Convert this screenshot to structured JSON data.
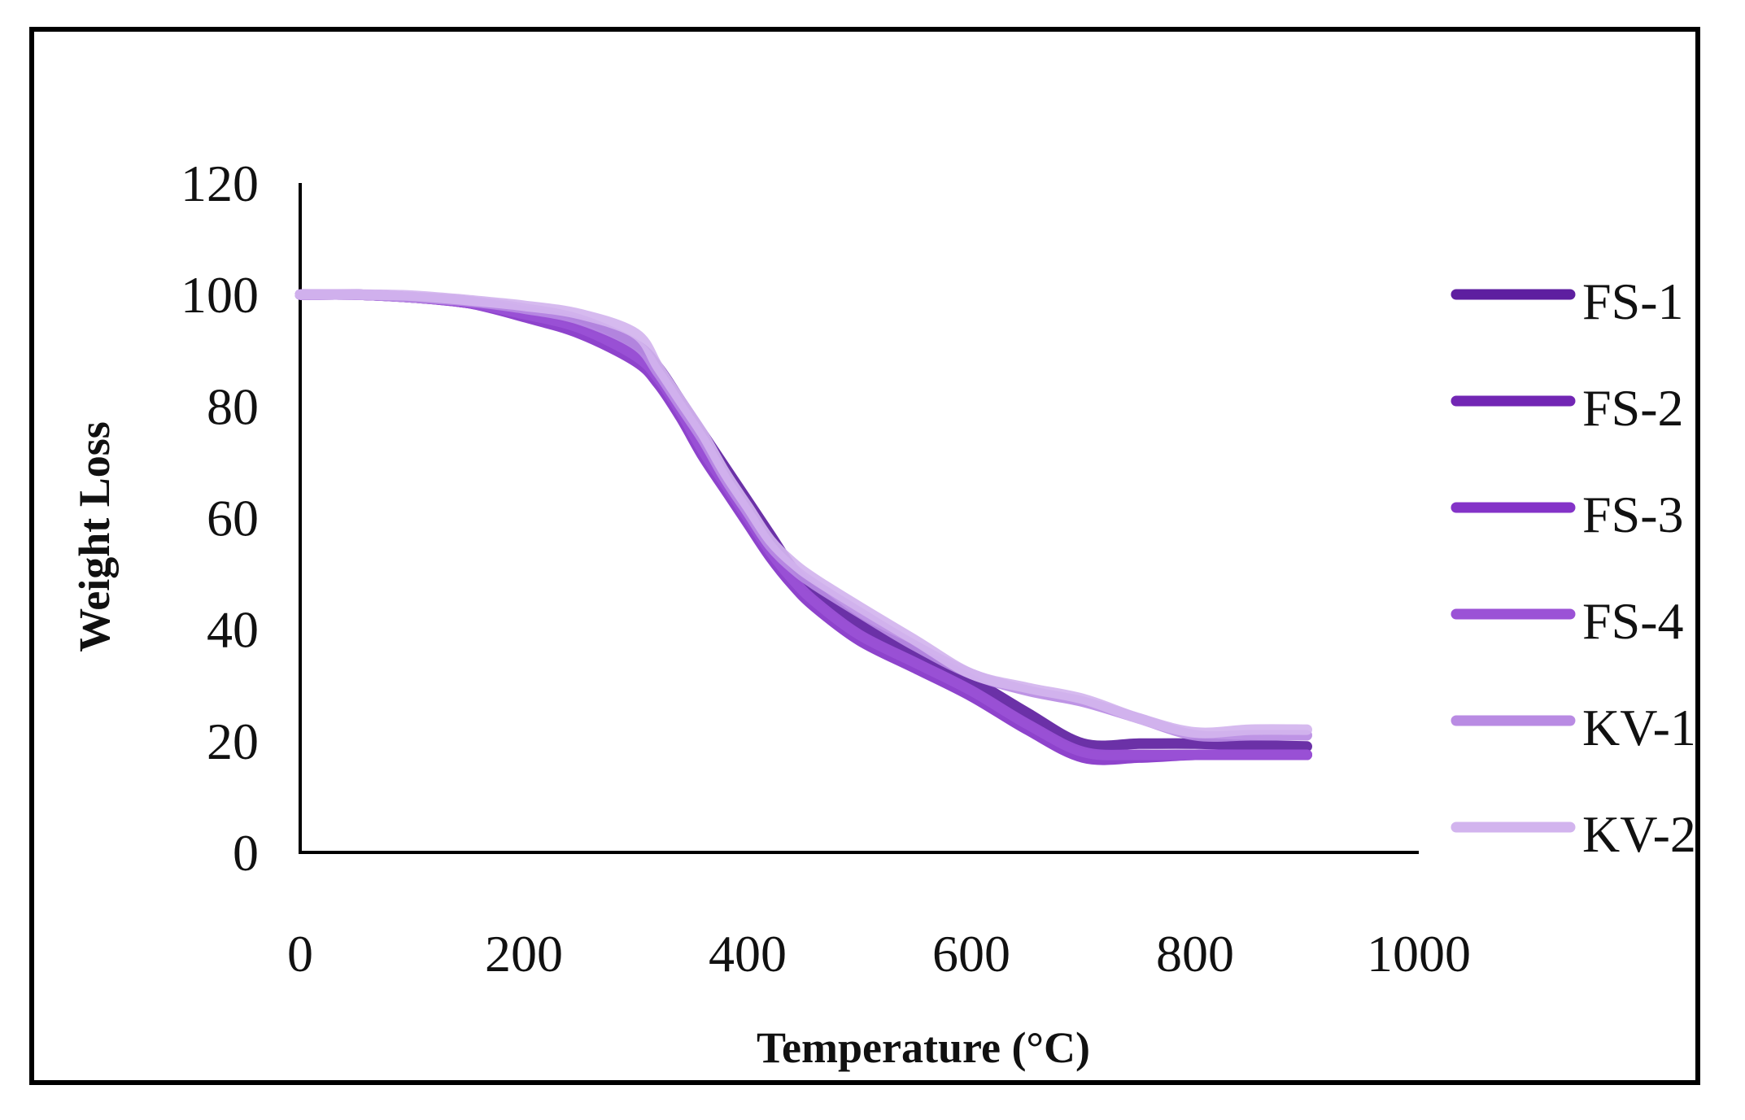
{
  "chart_data": {
    "type": "line",
    "title": "",
    "xlabel": "Temperature (°C)",
    "ylabel": "Weight Loss",
    "xlim": [
      0,
      1000
    ],
    "ylim": [
      0,
      120
    ],
    "x_ticks": [
      "0",
      "200",
      "400",
      "600",
      "800",
      "1000"
    ],
    "y_ticks": [
      "0",
      "20",
      "40",
      "60",
      "80",
      "100",
      "120"
    ],
    "x_tick_values": [
      0,
      200,
      400,
      600,
      800,
      1000
    ],
    "y_tick_values": [
      0,
      20,
      40,
      60,
      80,
      100,
      120
    ],
    "grid": false,
    "legend_position": "right",
    "series": [
      {
        "name": "FS-1",
        "color": "#5e1fa0",
        "x": [
          0,
          50,
          100,
          150,
          200,
          250,
          300,
          320,
          340,
          360,
          380,
          400,
          420,
          440,
          460,
          500,
          550,
          600,
          650,
          700,
          750,
          800,
          850,
          900
        ],
        "y": [
          100,
          100,
          99.5,
          98.8,
          97,
          95,
          91,
          87,
          81,
          75,
          69,
          63,
          57,
          51,
          47,
          41,
          36,
          31,
          25,
          19.5,
          19.5,
          19.5,
          19.2,
          19
        ]
      },
      {
        "name": "FS-2",
        "color": "#7226b4",
        "x": [
          0,
          50,
          100,
          150,
          200,
          250,
          300,
          320,
          340,
          360,
          380,
          400,
          420,
          440,
          460,
          500,
          550,
          600,
          650,
          700,
          750,
          800,
          850,
          900
        ],
        "y": [
          100,
          100,
          99.5,
          98.5,
          96.5,
          94,
          89,
          85,
          79,
          72,
          66,
          60,
          54,
          49,
          45,
          39,
          34,
          29,
          23,
          18,
          17.5,
          17.5,
          17.5,
          17.5
        ]
      },
      {
        "name": "FS-3",
        "color": "#8433c8",
        "x": [
          0,
          50,
          100,
          150,
          200,
          250,
          300,
          320,
          340,
          360,
          380,
          400,
          420,
          440,
          460,
          500,
          550,
          600,
          650,
          700,
          750,
          800,
          850,
          900
        ],
        "y": [
          100,
          100,
          99.5,
          98.5,
          96,
          93,
          88,
          84,
          78,
          71,
          65,
          59,
          53,
          48,
          44,
          38,
          33,
          28,
          22,
          17,
          17,
          17.5,
          17.5,
          17.5
        ]
      },
      {
        "name": "FS-4",
        "color": "#9b52d6",
        "x": [
          0,
          50,
          100,
          150,
          200,
          250,
          300,
          320,
          340,
          360,
          380,
          400,
          420,
          440,
          460,
          500,
          550,
          600,
          650,
          700,
          750,
          800,
          850,
          900
        ],
        "y": [
          100,
          100,
          99.5,
          98.5,
          96.5,
          94,
          89,
          85,
          79,
          72,
          66,
          60,
          54,
          49,
          45,
          39,
          34,
          29,
          23,
          18,
          17.5,
          17.5,
          17.5,
          17.5
        ]
      },
      {
        "name": "KV-1",
        "color": "#b98be3",
        "x": [
          0,
          50,
          100,
          150,
          200,
          250,
          300,
          320,
          340,
          360,
          380,
          400,
          420,
          440,
          460,
          500,
          550,
          600,
          650,
          700,
          750,
          800,
          850,
          900
        ],
        "y": [
          100,
          100,
          99.5,
          98.8,
          97.5,
          95.5,
          91,
          86,
          80,
          74,
          67,
          61,
          55,
          51,
          48,
          43,
          37,
          32,
          29,
          27,
          24,
          21,
          21,
          21
        ]
      },
      {
        "name": "KV-2",
        "color": "#d2b4ee",
        "x": [
          0,
          50,
          100,
          150,
          200,
          250,
          300,
          320,
          340,
          360,
          380,
          400,
          420,
          440,
          460,
          500,
          550,
          600,
          650,
          700,
          750,
          800,
          850,
          900
        ],
        "y": [
          100,
          100,
          99.8,
          99,
          98,
          96.5,
          93,
          87,
          81,
          75,
          68,
          62,
          56,
          52,
          49,
          44,
          38,
          32,
          29.5,
          27.5,
          24,
          21.5,
          22,
          22
        ]
      }
    ]
  }
}
